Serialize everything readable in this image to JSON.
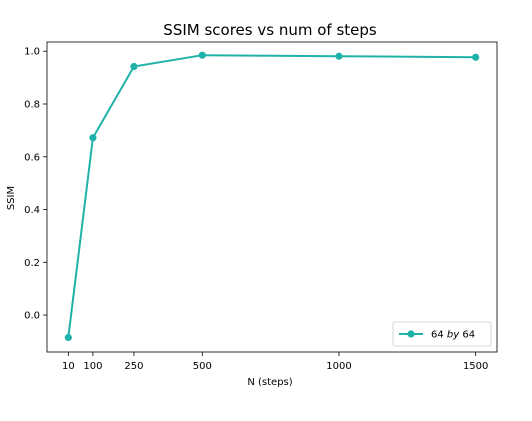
{
  "chart_data": {
    "type": "line",
    "title": "SSIM scores vs num of steps",
    "xlabel": "N (steps)",
    "ylabel": "SSIM",
    "x_ticks": [
      10,
      100,
      250,
      500,
      1000,
      1500
    ],
    "y_ticks": [
      0.0,
      0.2,
      0.4,
      0.6,
      0.8,
      1.0
    ],
    "y_tick_labels": [
      "0.0",
      "0.2",
      "0.4",
      "0.6",
      "0.8",
      "1.0"
    ],
    "xlim": [
      -68,
      1578
    ],
    "ylim": [
      -0.14,
      1.035
    ],
    "grid": false,
    "legend_position": "lower-right",
    "series": [
      {
        "name": "64 by 64",
        "legend_parts": [
          "64 ",
          "by",
          " 64"
        ],
        "color": "#20b2aa",
        "marker": "circle",
        "x": [
          10,
          100,
          250,
          500,
          1000,
          1500
        ],
        "y": [
          -0.085,
          0.672,
          0.942,
          0.985,
          0.981,
          0.977
        ]
      }
    ]
  }
}
